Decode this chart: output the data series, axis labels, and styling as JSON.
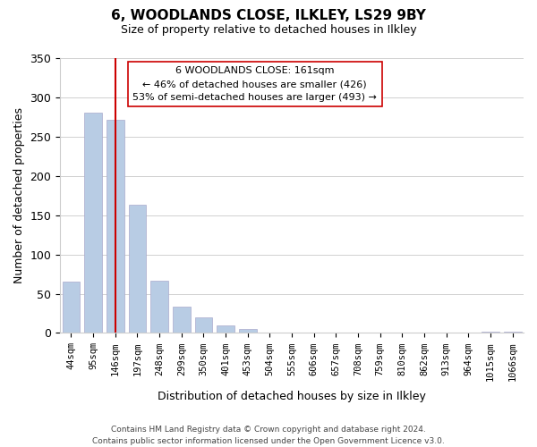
{
  "title": "6, WOODLANDS CLOSE, ILKLEY, LS29 9BY",
  "subtitle": "Size of property relative to detached houses in Ilkley",
  "xlabel": "Distribution of detached houses by size in Ilkley",
  "ylabel": "Number of detached properties",
  "categories": [
    "44sqm",
    "95sqm",
    "146sqm",
    "197sqm",
    "248sqm",
    "299sqm",
    "350sqm",
    "401sqm",
    "453sqm",
    "504sqm",
    "555sqm",
    "606sqm",
    "657sqm",
    "708sqm",
    "759sqm",
    "810sqm",
    "862sqm",
    "913sqm",
    "964sqm",
    "1015sqm",
    "1066sqm"
  ],
  "values": [
    65,
    280,
    272,
    163,
    67,
    34,
    20,
    10,
    5,
    0,
    0,
    0,
    0,
    0,
    0,
    0,
    0,
    0,
    0,
    2,
    2
  ],
  "bar_color": "#b8cce4",
  "bar_edge_color": "#aaaacc",
  "vline_x": 2,
  "vline_color": "#cc0000",
  "ylim": [
    0,
    350
  ],
  "yticks": [
    0,
    50,
    100,
    150,
    200,
    250,
    300,
    350
  ],
  "annotation_title": "6 WOODLANDS CLOSE: 161sqm",
  "annotation_line1": "← 46% of detached houses are smaller (426)",
  "annotation_line2": "53% of semi-detached houses are larger (493) →",
  "annotation_box_color": "#ffffff",
  "annotation_box_edge": "#cc0000",
  "footer_line1": "Contains HM Land Registry data © Crown copyright and database right 2024.",
  "footer_line2": "Contains public sector information licensed under the Open Government Licence v3.0.",
  "background_color": "#ffffff",
  "grid_color": "#d0d0d0"
}
